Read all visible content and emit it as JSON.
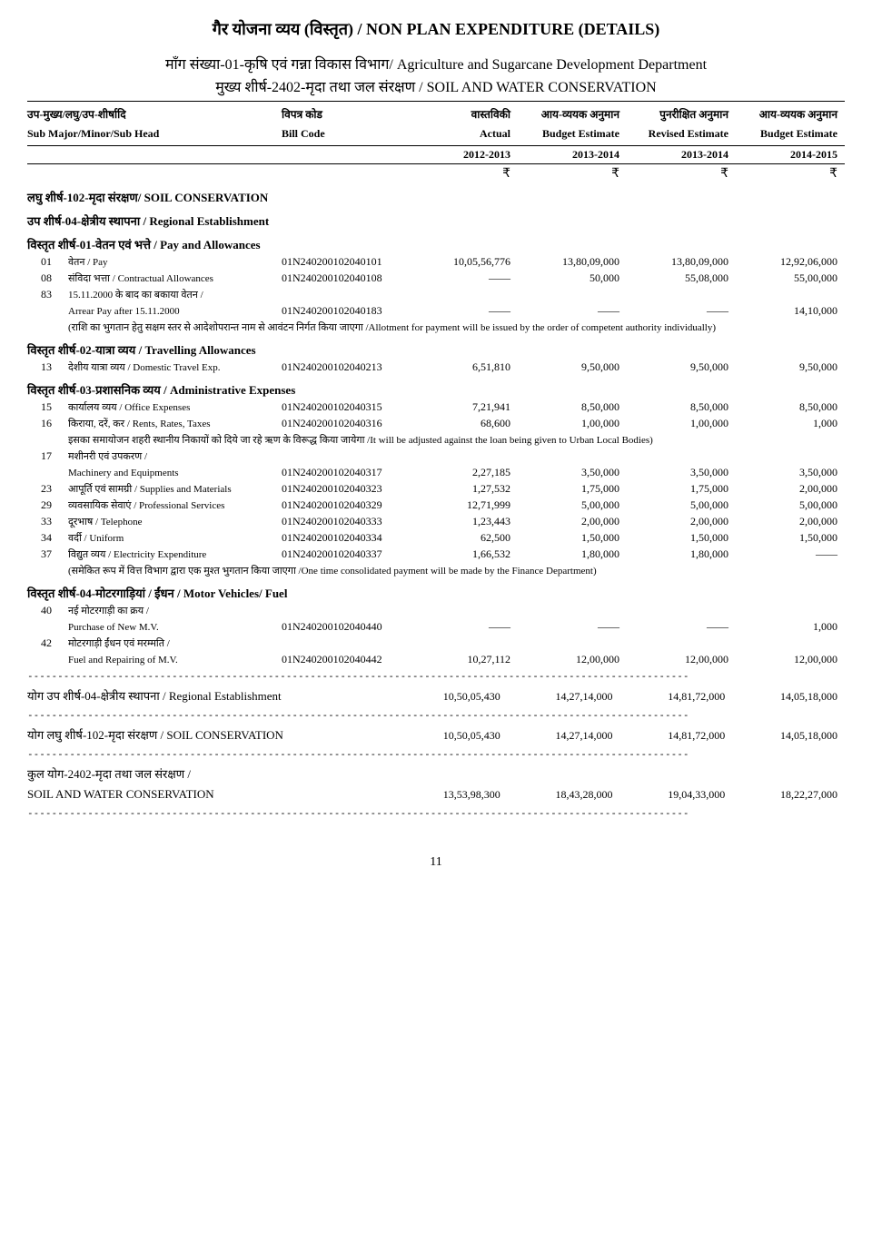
{
  "title": "गैर योजना व्यय (विस्तृत)  /  NON PLAN EXPENDITURE (DETAILS)",
  "demand_line": "माँग संख्या-01-कृषि एवं गन्ना विकास विभाग/ Agriculture and Sugarcane Development Department",
  "major_head_line": "मुख्य शीर्ष-2402-मृदा तथा जल संरक्षण   / SOIL AND WATER CONSERVATION",
  "headers_hi": {
    "head": "उप-मुख्य/लघु/उप-शीर्षादि",
    "bill": "विपत्र  कोड",
    "actual": "वास्तविकी",
    "budget": "आय-व्ययक  अनुमान",
    "revised": "पुनरीक्षित  अनुमान",
    "budget2": "आय-व्ययक  अनुमान"
  },
  "headers_en": {
    "head": "Sub Major/Minor/Sub Head",
    "bill": "Bill  Code",
    "actual": "Actual",
    "budget": "Budget  Estimate",
    "revised": "Revised  Estimate",
    "budget2": "Budget  Estimate"
  },
  "years": {
    "y1": "2012-2013",
    "y2": "2013-2014",
    "y3": "2013-2014",
    "y4": "2014-2015"
  },
  "rupee": "₹",
  "dash_line": "--------------------------------------------------------------------------------------------------------------",
  "sec_102": "लघु  शीर्ष-102-मृदा  संरक्षण/ SOIL CONSERVATION",
  "sec_04": "उप  शीर्ष-04-क्षेत्रीय  स्थापना / Regional Establishment",
  "sec_01": "विस्तृत  शीर्ष-01-वेतन  एवं  भत्ते / Pay and Allowances",
  "sec_02": "विस्तृत  शीर्ष-02-यात्रा  व्यय / Travelling Allowances",
  "sec_03": "विस्तृत  शीर्ष-03-प्रशासनिक  व्यय / Administrative Expenses",
  "sec_04mv": "विस्तृत  शीर्ष-04-मोटरगाड़ियां   /   ईंधन / Motor Vehicles/ Fuel",
  "rows": {
    "r01": {
      "code": "01",
      "label": "वेतन / Pay",
      "bill": "01N240200102040101",
      "v1": "10,05,56,776",
      "v2": "13,80,09,000",
      "v3": "13,80,09,000",
      "v4": "12,92,06,000"
    },
    "r08": {
      "code": "08",
      "label": "संविदा  भत्ता / Contractual Allowances",
      "bill": "01N240200102040108",
      "v1": "——",
      "v2": "50,000",
      "v3": "55,08,000",
      "v4": "55,00,000"
    },
    "r83a": {
      "code": "83",
      "label": "15.11.2000 के बाद का बकाया वेतन /"
    },
    "r83b": {
      "label": "Arrear Pay after 15.11.2000",
      "bill": "01N240200102040183",
      "v1": "——",
      "v2": "——",
      "v3": "——",
      "v4": "14,10,000"
    },
    "note_alloc": "(राशि का भुगतान हेतु सक्षम स्तर से आदेशोपरान्त नाम से आवंटन निर्गत किया जाएगा /Allotment for payment will be issued by the order of competent authority individually)",
    "r13": {
      "code": "13",
      "label": "देशीय यात्रा व्यय / Domestic Travel Exp.",
      "bill": "01N240200102040213",
      "v1": "6,51,810",
      "v2": "9,50,000",
      "v3": "9,50,000",
      "v4": "9,50,000"
    },
    "r15": {
      "code": "15",
      "label": "कार्यालय व्यय / Office Expenses",
      "bill": "01N240200102040315",
      "v1": "7,21,941",
      "v2": "8,50,000",
      "v3": "8,50,000",
      "v4": "8,50,000"
    },
    "r16": {
      "code": "16",
      "label": "किराया, दरें, कर / Rents, Rates, Taxes",
      "bill": "01N240200102040316",
      "v1": "68,600",
      "v2": "1,00,000",
      "v3": "1,00,000",
      "v4": "1,000"
    },
    "note_urban": "इसका समायोजन शहरी स्थानीय निकायों को दिये जा रहे ऋण के विरूद्ध किया जायेगा /It will be adjusted against the loan being given to Urban Local Bodies)",
    "r17a": {
      "code": "17",
      "label": "मशीनरी एवं उपकरण /"
    },
    "r17b": {
      "label": "Machinery and Equipments",
      "bill": "01N240200102040317",
      "v1": "2,27,185",
      "v2": "3,50,000",
      "v3": "3,50,000",
      "v4": "3,50,000"
    },
    "r23": {
      "code": "23",
      "label": "आपूर्ति एवं सामग्री / Supplies and Materials",
      "bill": "01N240200102040323",
      "v1": "1,27,532",
      "v2": "1,75,000",
      "v3": "1,75,000",
      "v4": "2,00,000"
    },
    "r29": {
      "code": "29",
      "label": "व्यवसायिक सेवाएं / Professional Services",
      "bill": "01N240200102040329",
      "v1": "12,71,999",
      "v2": "5,00,000",
      "v3": "5,00,000",
      "v4": "5,00,000"
    },
    "r33": {
      "code": "33",
      "label": "दूरभाष / Telephone",
      "bill": "01N240200102040333",
      "v1": "1,23,443",
      "v2": "2,00,000",
      "v3": "2,00,000",
      "v4": "2,00,000"
    },
    "r34": {
      "code": "34",
      "label": "वर्दी / Uniform",
      "bill": "01N240200102040334",
      "v1": "62,500",
      "v2": "1,50,000",
      "v3": "1,50,000",
      "v4": "1,50,000"
    },
    "r37": {
      "code": "37",
      "label": "विद्युत  व्यय / Electricity Expenditure",
      "bill": "01N240200102040337",
      "v1": "1,66,532",
      "v2": "1,80,000",
      "v3": "1,80,000",
      "v4": "——"
    },
    "note_finance": "(समेकित रूप में वित्त विभाग द्वारा एक मुश्त भुगतान किया जाएगा /One time consolidated payment will be made by the Finance Department)",
    "r40a": {
      "code": "40",
      "label": "नई मोटरगाड़ी का क्रय /"
    },
    "r40b": {
      "label": "Purchase of New M.V.",
      "bill": "01N240200102040440",
      "v1": "——",
      "v2": "——",
      "v3": "——",
      "v4": "1,000"
    },
    "r42a": {
      "code": "42",
      "label": "मोटरगाड़ी ईंधन एवं मरम्मति /"
    },
    "r42b": {
      "label": "Fuel and Repairing of M.V.",
      "bill": "01N240200102040442",
      "v1": "10,27,112",
      "v2": "12,00,000",
      "v3": "12,00,000",
      "v4": "12,00,000"
    }
  },
  "totals": {
    "t04": {
      "label": "योग  उप  शीर्ष-04-क्षेत्रीय  स्थापना   / Regional Establishment",
      "v1": "10,50,05,430",
      "v2": "14,27,14,000",
      "v3": "14,81,72,000",
      "v4": "14,05,18,000"
    },
    "t102": {
      "label": "योग  लघु  शीर्ष-102-मृदा  संरक्षण  / SOIL CONSERVATION",
      "v1": "10,50,05,430",
      "v2": "14,27,14,000",
      "v3": "14,81,72,000",
      "v4": "14,05,18,000"
    },
    "t2402a": {
      "label": "कुल  योग-2402-मृदा  तथा  जल  संरक्षण /"
    },
    "t2402b": {
      "label": "SOIL AND WATER CONSERVATION",
      "v1": "13,53,98,300",
      "v2": "18,43,28,000",
      "v3": "19,04,33,000",
      "v4": "18,22,27,000"
    }
  },
  "page_num": "11"
}
